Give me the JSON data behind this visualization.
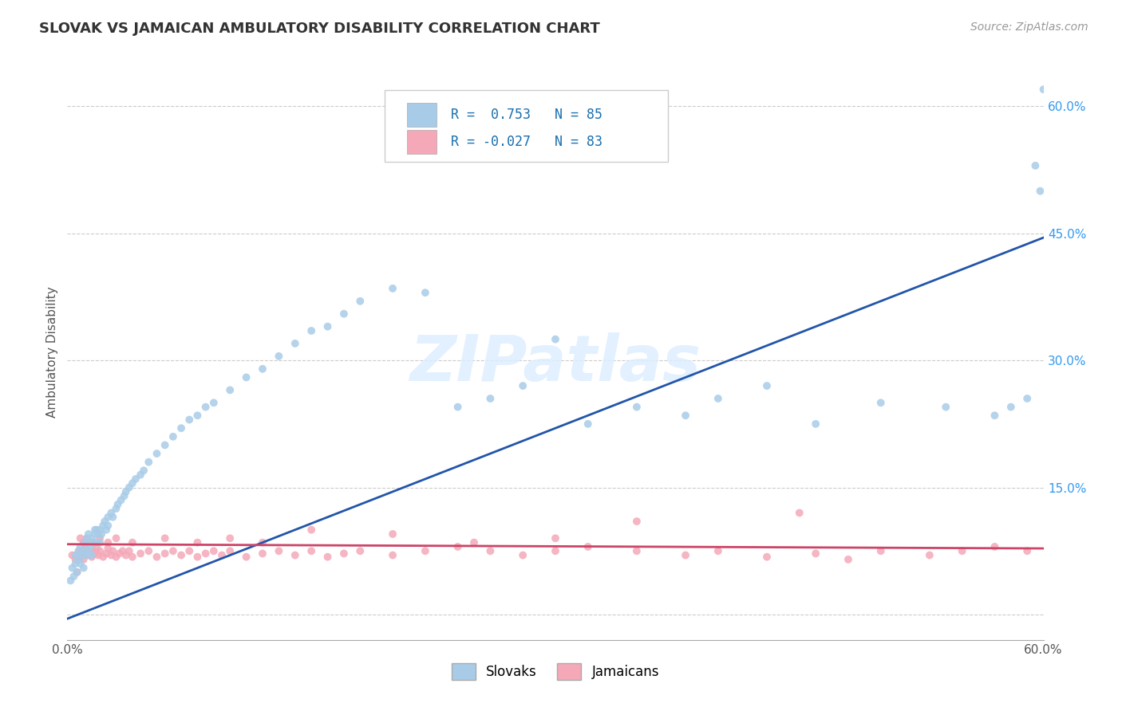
{
  "title": "SLOVAK VS JAMAICAN AMBULATORY DISABILITY CORRELATION CHART",
  "source": "Source: ZipAtlas.com",
  "ylabel": "Ambulatory Disability",
  "xlim": [
    0.0,
    0.6
  ],
  "ylim": [
    -0.03,
    0.65
  ],
  "slovak_color": "#a8cce8",
  "jamaican_color": "#f4a8b8",
  "slovak_line_color": "#2255aa",
  "jamaican_line_color": "#cc4466",
  "background_color": "#ffffff",
  "grid_color": "#cccccc",
  "title_fontsize": 13,
  "source_fontsize": 10,
  "legend_R1": "0.753",
  "legend_N1": "85",
  "legend_R2": "-0.027",
  "legend_N2": "83",
  "watermark": "ZIPatlas",
  "slovak_line_x0": 0.0,
  "slovak_line_y0": -0.005,
  "slovak_line_x1": 0.6,
  "slovak_line_y1": 0.445,
  "jamaican_line_x0": 0.0,
  "jamaican_line_y0": 0.083,
  "jamaican_line_x1": 0.6,
  "jamaican_line_y1": 0.078,
  "slovak_scatter_x": [
    0.002,
    0.003,
    0.004,
    0.005,
    0.005,
    0.006,
    0.007,
    0.007,
    0.008,
    0.008,
    0.009,
    0.01,
    0.01,
    0.011,
    0.012,
    0.012,
    0.013,
    0.013,
    0.014,
    0.015,
    0.015,
    0.016,
    0.017,
    0.017,
    0.018,
    0.018,
    0.019,
    0.02,
    0.02,
    0.021,
    0.022,
    0.023,
    0.024,
    0.025,
    0.025,
    0.027,
    0.028,
    0.03,
    0.031,
    0.033,
    0.035,
    0.036,
    0.038,
    0.04,
    0.042,
    0.045,
    0.047,
    0.05,
    0.055,
    0.06,
    0.065,
    0.07,
    0.075,
    0.08,
    0.085,
    0.09,
    0.1,
    0.11,
    0.12,
    0.13,
    0.14,
    0.15,
    0.16,
    0.17,
    0.18,
    0.2,
    0.22,
    0.24,
    0.26,
    0.28,
    0.3,
    0.32,
    0.35,
    0.38,
    0.4,
    0.43,
    0.46,
    0.5,
    0.54,
    0.57,
    0.58,
    0.59,
    0.595,
    0.598,
    0.6
  ],
  "slovak_scatter_y": [
    0.04,
    0.055,
    0.045,
    0.07,
    0.06,
    0.05,
    0.065,
    0.075,
    0.06,
    0.08,
    0.07,
    0.055,
    0.075,
    0.085,
    0.07,
    0.09,
    0.075,
    0.095,
    0.08,
    0.07,
    0.09,
    0.085,
    0.095,
    0.1,
    0.085,
    0.1,
    0.095,
    0.085,
    0.1,
    0.095,
    0.105,
    0.11,
    0.1,
    0.115,
    0.105,
    0.12,
    0.115,
    0.125,
    0.13,
    0.135,
    0.14,
    0.145,
    0.15,
    0.155,
    0.16,
    0.165,
    0.17,
    0.18,
    0.19,
    0.2,
    0.21,
    0.22,
    0.23,
    0.235,
    0.245,
    0.25,
    0.265,
    0.28,
    0.29,
    0.305,
    0.32,
    0.335,
    0.34,
    0.355,
    0.37,
    0.385,
    0.38,
    0.245,
    0.255,
    0.27,
    0.325,
    0.225,
    0.245,
    0.235,
    0.255,
    0.27,
    0.225,
    0.25,
    0.245,
    0.235,
    0.245,
    0.255,
    0.53,
    0.5,
    0.62
  ],
  "jamaican_scatter_x": [
    0.003,
    0.005,
    0.007,
    0.008,
    0.009,
    0.01,
    0.011,
    0.012,
    0.013,
    0.015,
    0.016,
    0.017,
    0.018,
    0.019,
    0.02,
    0.022,
    0.024,
    0.025,
    0.027,
    0.028,
    0.03,
    0.032,
    0.034,
    0.036,
    0.038,
    0.04,
    0.045,
    0.05,
    0.055,
    0.06,
    0.065,
    0.07,
    0.075,
    0.08,
    0.085,
    0.09,
    0.095,
    0.1,
    0.11,
    0.12,
    0.13,
    0.14,
    0.15,
    0.16,
    0.17,
    0.18,
    0.2,
    0.22,
    0.24,
    0.26,
    0.28,
    0.3,
    0.32,
    0.35,
    0.38,
    0.4,
    0.43,
    0.46,
    0.5,
    0.53,
    0.55,
    0.57,
    0.59,
    0.35,
    0.45,
    0.48,
    0.3,
    0.25,
    0.2,
    0.15,
    0.12,
    0.1,
    0.08,
    0.06,
    0.04,
    0.03,
    0.025,
    0.02,
    0.015,
    0.012,
    0.01,
    0.008,
    0.006
  ],
  "jamaican_scatter_y": [
    0.07,
    0.065,
    0.075,
    0.068,
    0.072,
    0.065,
    0.078,
    0.07,
    0.075,
    0.068,
    0.075,
    0.072,
    0.078,
    0.07,
    0.075,
    0.068,
    0.072,
    0.078,
    0.07,
    0.075,
    0.068,
    0.072,
    0.075,
    0.07,
    0.075,
    0.068,
    0.072,
    0.075,
    0.068,
    0.072,
    0.075,
    0.07,
    0.075,
    0.068,
    0.072,
    0.075,
    0.07,
    0.075,
    0.068,
    0.072,
    0.075,
    0.07,
    0.075,
    0.068,
    0.072,
    0.075,
    0.07,
    0.075,
    0.08,
    0.075,
    0.07,
    0.075,
    0.08,
    0.075,
    0.07,
    0.075,
    0.068,
    0.072,
    0.075,
    0.07,
    0.075,
    0.08,
    0.075,
    0.11,
    0.12,
    0.065,
    0.09,
    0.085,
    0.095,
    0.1,
    0.085,
    0.09,
    0.085,
    0.09,
    0.085,
    0.09,
    0.085,
    0.09,
    0.085,
    0.09,
    0.085,
    0.09,
    0.05
  ]
}
